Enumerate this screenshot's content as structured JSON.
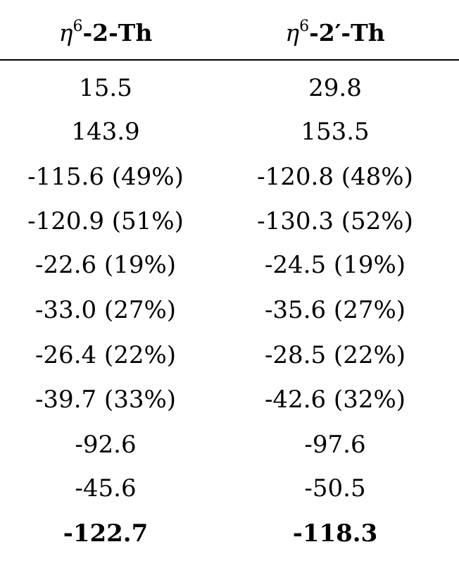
{
  "table": {
    "columns": [
      {
        "eta": "η",
        "sup": "6",
        "label": "-2-Th"
      },
      {
        "eta": "η",
        "sup": "6",
        "label": "-2′-Th"
      }
    ],
    "rows": [
      [
        "15.5",
        "29.8"
      ],
      [
        "143.9",
        "153.5"
      ],
      [
        "-115.6 (49%)",
        "-120.8 (48%)"
      ],
      [
        "-120.9 (51%)",
        "-130.3 (52%)"
      ],
      [
        "-22.6 (19%)",
        "-24.5 (19%)"
      ],
      [
        "-33.0 (27%)",
        "-35.6 (27%)"
      ],
      [
        "-26.4 (22%)",
        "-28.5 (22%)"
      ],
      [
        "-39.7 (33%)",
        "-42.6 (32%)"
      ],
      [
        "-92.6",
        "-97.6"
      ],
      [
        "-45.6",
        "-50.5"
      ],
      [
        "-122.7",
        "-118.3"
      ]
    ]
  }
}
